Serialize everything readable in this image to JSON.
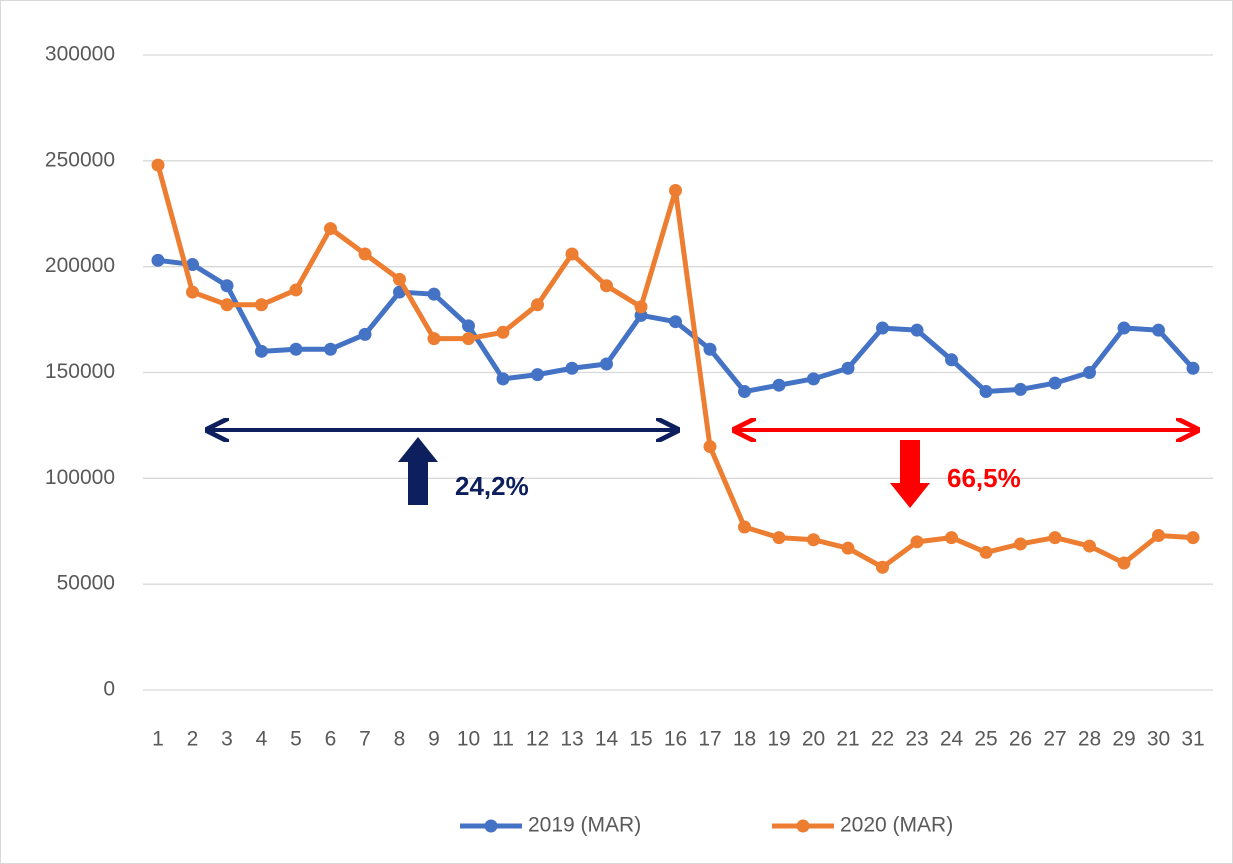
{
  "chart_data": {
    "type": "line",
    "categories": [
      "1",
      "2",
      "3",
      "4",
      "5",
      "6",
      "7",
      "8",
      "9",
      "10",
      "11",
      "12",
      "13",
      "14",
      "15",
      "16",
      "17",
      "18",
      "19",
      "20",
      "21",
      "22",
      "23",
      "24",
      "25",
      "26",
      "27",
      "28",
      "29",
      "30",
      "31"
    ],
    "series": [
      {
        "name": "2019 (MAR)",
        "color": "#4472c4",
        "values": [
          203000,
          201000,
          191000,
          160000,
          161000,
          161000,
          168000,
          188000,
          187000,
          172000,
          147000,
          149000,
          152000,
          154000,
          177000,
          174000,
          161000,
          141000,
          144000,
          147000,
          152000,
          171000,
          170000,
          156000,
          141000,
          142000,
          145000,
          150000,
          171000,
          170000,
          152000
        ]
      },
      {
        "name": "2020 (MAR)",
        "color": "#ed7d31",
        "values": [
          248000,
          188000,
          182000,
          182000,
          189000,
          218000,
          206000,
          194000,
          166000,
          166000,
          169000,
          182000,
          206000,
          191000,
          181000,
          236000,
          115000,
          77000,
          72000,
          71000,
          67000,
          58000,
          70000,
          72000,
          65000,
          69000,
          72000,
          68000,
          60000,
          73000,
          72000
        ]
      }
    ],
    "ylim": [
      0,
      300000
    ],
    "yticks": [
      0,
      50000,
      100000,
      150000,
      200000,
      250000,
      300000
    ],
    "grid": true,
    "annotations": [
      "24,2%",
      "66,5%"
    ],
    "legend": "bottom"
  }
}
